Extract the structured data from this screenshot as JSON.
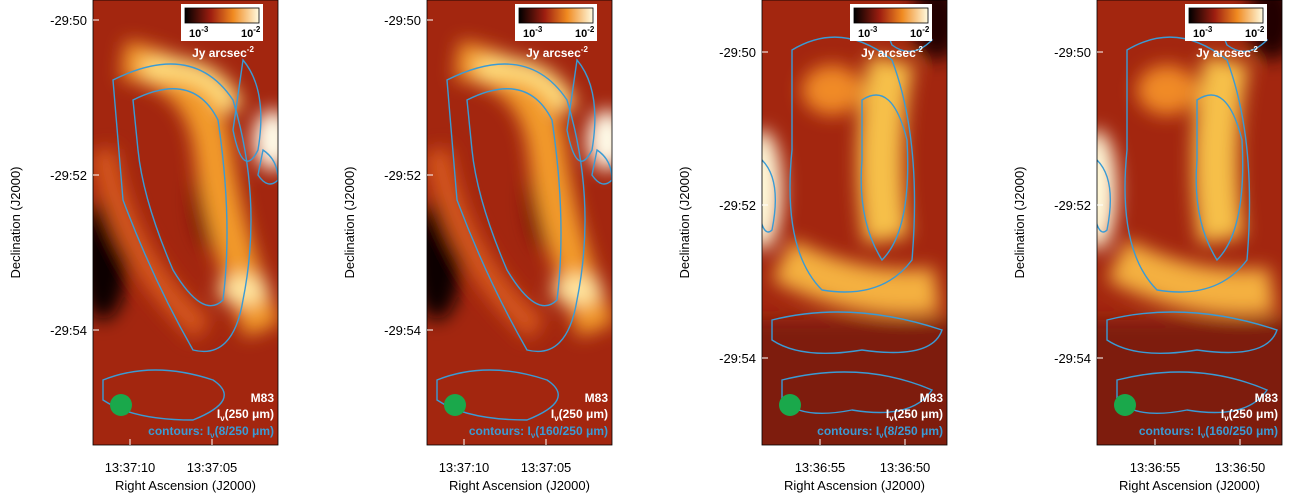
{
  "panels": [
    {
      "ylabel": "Declination (J2000)",
      "xlabel": "Right Ascension (J2000)",
      "yticks": [
        "-29:50",
        "-29:52",
        "-29:54"
      ],
      "xticks": [
        "13:37:10",
        "13:37:05"
      ],
      "colorbar": {
        "min": {
          "base": "10",
          "exp": "-3"
        },
        "max": {
          "base": "10",
          "exp": "-2"
        },
        "unit": {
          "base": "Jy arcsec",
          "exp": "-2"
        }
      },
      "object": "M83",
      "map_label": {
        "main": "I",
        "sub": "ν",
        "rest": "(250 μm)"
      },
      "contour_label": {
        "main": "contours: I",
        "sub": "ν",
        "rest": "(8/250 μm)"
      }
    },
    {
      "ylabel": "Declination (J2000)",
      "xlabel": "Right Ascension (J2000)",
      "yticks": [
        "-29:50",
        "-29:52",
        "-29:54"
      ],
      "xticks": [
        "13:37:10",
        "13:37:05"
      ],
      "colorbar": {
        "min": {
          "base": "10",
          "exp": "-3"
        },
        "max": {
          "base": "10",
          "exp": "-2"
        },
        "unit": {
          "base": "Jy arcsec",
          "exp": "-2"
        }
      },
      "object": "M83",
      "map_label": {
        "main": "I",
        "sub": "ν",
        "rest": "(250 μm)"
      },
      "contour_label": {
        "main": "contours: I",
        "sub": "ν",
        "rest": "(160/250 μm)"
      }
    },
    {
      "ylabel": "Declination (J2000)",
      "xlabel": "Right Ascension (J2000)",
      "yticks": [
        "-29:50",
        "-29:52",
        "-29:54"
      ],
      "xticks": [
        "13:36:55",
        "13:36:50"
      ],
      "colorbar": {
        "min": {
          "base": "10",
          "exp": "-3"
        },
        "max": {
          "base": "10",
          "exp": "-2"
        },
        "unit": {
          "base": "Jy arcsec",
          "exp": "-2"
        }
      },
      "object": "M83",
      "map_label": {
        "main": "I",
        "sub": "ν",
        "rest": "(250 μm)"
      },
      "contour_label": {
        "main": "contours: I",
        "sub": "ν",
        "rest": "(8/250 μm)"
      }
    },
    {
      "ylabel": "Declination (J2000)",
      "xlabel": "Right Ascension (J2000)",
      "yticks": [
        "-29:50",
        "-29:52",
        "-29:54"
      ],
      "xticks": [
        "13:36:55",
        "13:36:50"
      ],
      "colorbar": {
        "min": {
          "base": "10",
          "exp": "-3"
        },
        "max": {
          "base": "10",
          "exp": "-2"
        },
        "unit": {
          "base": "Jy arcsec",
          "exp": "-2"
        }
      },
      "object": "M83",
      "map_label": {
        "main": "I",
        "sub": "ν",
        "rest": "(250 μm)"
      },
      "contour_label": {
        "main": "contours: I",
        "sub": "ν",
        "rest": "(160/250 μm)"
      }
    }
  ]
}
